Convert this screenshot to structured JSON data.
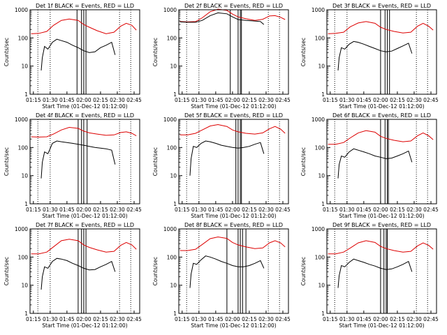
{
  "figure": {
    "xlabel": "Start Time (01-Dec-12 01:12:00)",
    "ylabel": "Counts/sec"
  },
  "colors": {
    "events": "#000000",
    "lld": "#dd0000",
    "axes": "#000000"
  },
  "chart_data": [
    {
      "type": "line",
      "title": "Det 1f BLACK = Events, RED = LLD",
      "xlabel": "Start Time (01-Dec-12 01:12:00)",
      "ylabel": "Counts/sec",
      "y_scale": "log",
      "ylim": [
        1,
        1000
      ],
      "x_ticks": [
        "01:15",
        "01:30",
        "01:45",
        "02:00",
        "02:15",
        "02:30",
        "02:45"
      ],
      "y_ticks": [
        "1",
        "10",
        "100",
        "1000"
      ],
      "dotted_vlines": [
        "01:19",
        "01:30",
        "02:32",
        "02:42"
      ],
      "solid_vlines": [
        "01:54",
        "01:58",
        "02:00",
        "02:02"
      ],
      "series": [
        {
          "name": "LLD",
          "x": [
            "01:13",
            "01:20",
            "01:27",
            "01:33",
            "01:40",
            "01:47",
            "01:55",
            "02:00",
            "02:05",
            "02:12",
            "02:20",
            "02:27",
            "02:33",
            "02:38",
            "02:43",
            "02:47"
          ],
          "values": [
            140,
            145,
            170,
            280,
            420,
            470,
            420,
            300,
            240,
            180,
            140,
            160,
            260,
            330,
            280,
            190
          ]
        },
        {
          "name": "Events",
          "x": [
            "01:22",
            "01:23",
            "01:25",
            "01:28",
            "01:32",
            "01:36",
            "01:40",
            "01:45",
            "01:50",
            "01:55",
            "02:00",
            "02:05",
            "02:10",
            "02:15",
            "02:20",
            "02:25",
            "02:28"
          ],
          "values": [
            7,
            20,
            50,
            40,
            70,
            90,
            80,
            70,
            55,
            45,
            35,
            30,
            32,
            45,
            55,
            70,
            25
          ]
        }
      ]
    },
    {
      "type": "line",
      "title": "Det 2f BLACK = Events, RED = LLD",
      "xlabel": "Start Time (01-Dec-12 01:12:00)",
      "ylabel": "Counts/sec",
      "y_scale": "log",
      "ylim": [
        1,
        1000
      ],
      "x_ticks": [
        "01:15",
        "01:30",
        "01:45",
        "02:00",
        "02:15",
        "02:30",
        "02:45"
      ],
      "y_ticks": [
        "1",
        "10",
        "100",
        "1000"
      ],
      "dotted_vlines": [
        "01:19",
        "01:30",
        "02:32",
        "02:42"
      ],
      "solid_vlines": [
        "01:58",
        "02:05",
        "02:07",
        "02:08"
      ],
      "series": [
        {
          "name": "LLD",
          "x": [
            "01:13",
            "01:20",
            "01:27",
            "01:33",
            "01:40",
            "01:47",
            "01:55",
            "02:00",
            "02:05",
            "02:12",
            "02:20",
            "02:27",
            "02:33",
            "02:38",
            "02:43",
            "02:47"
          ],
          "values": [
            380,
            370,
            380,
            520,
            850,
            1050,
            950,
            700,
            560,
            480,
            420,
            460,
            600,
            620,
            540,
            450
          ]
        },
        {
          "name": "Events",
          "x": [
            "01:13",
            "01:20",
            "01:27",
            "01:33",
            "01:40",
            "01:47",
            "01:55",
            "02:00",
            "02:05",
            "02:12",
            "02:20",
            "02:25",
            "02:28"
          ],
          "values": [
            370,
            360,
            360,
            420,
            620,
            780,
            720,
            560,
            450,
            420,
            400,
            380,
            300
          ]
        }
      ]
    },
    {
      "type": "line",
      "title": "Det 3f BLACK = Events, RED = LLD",
      "xlabel": "Start Time (01-Dec-12 01:12:00)",
      "ylabel": "Counts/sec",
      "y_scale": "log",
      "ylim": [
        1,
        1000
      ],
      "x_ticks": [
        "01:15",
        "01:30",
        "01:45",
        "02:00",
        "02:15",
        "02:30",
        "02:45"
      ],
      "y_ticks": [
        "1",
        "10",
        "100",
        "1000"
      ],
      "dotted_vlines": [
        "01:19",
        "01:30",
        "02:32",
        "02:42"
      ],
      "solid_vlines": [
        "02:00",
        "02:04",
        "02:06",
        "02:08"
      ],
      "series": [
        {
          "name": "LLD",
          "x": [
            "01:13",
            "01:20",
            "01:27",
            "01:33",
            "01:40",
            "01:47",
            "01:55",
            "02:00",
            "02:05",
            "02:12",
            "02:20",
            "02:27",
            "02:33",
            "02:38",
            "02:43",
            "02:47"
          ],
          "values": [
            140,
            145,
            160,
            250,
            340,
            380,
            330,
            240,
            200,
            170,
            150,
            160,
            260,
            330,
            260,
            190
          ]
        },
        {
          "name": "Events",
          "x": [
            "01:22",
            "01:23",
            "01:25",
            "01:28",
            "01:32",
            "01:36",
            "01:40",
            "01:45",
            "01:50",
            "01:55",
            "02:00",
            "02:05",
            "02:10",
            "02:15",
            "02:20",
            "02:25",
            "02:28"
          ],
          "values": [
            7,
            20,
            45,
            40,
            60,
            75,
            70,
            60,
            50,
            42,
            35,
            32,
            34,
            42,
            52,
            65,
            28
          ]
        }
      ]
    },
    {
      "type": "line",
      "title": "Det 4f BLACK = Events, RED = LLD",
      "xlabel": "Start Time (01-Dec-12 01:12:00)",
      "ylabel": "Counts/sec",
      "y_scale": "log",
      "ylim": [
        1,
        1000
      ],
      "x_ticks": [
        "01:15",
        "01:30",
        "01:45",
        "02:00",
        "02:15",
        "02:30",
        "02:45"
      ],
      "y_ticks": [
        "1",
        "10",
        "100",
        "1000"
      ],
      "dotted_vlines": [
        "01:19",
        "01:30",
        "02:32",
        "02:42"
      ],
      "solid_vlines": [
        "01:55",
        "01:58",
        "02:00",
        "02:03"
      ],
      "series": [
        {
          "name": "LLD",
          "x": [
            "01:13",
            "01:20",
            "01:27",
            "01:33",
            "01:40",
            "01:47",
            "01:55",
            "02:00",
            "02:05",
            "02:12",
            "02:20",
            "02:27",
            "02:33",
            "02:38",
            "02:43",
            "02:47"
          ],
          "values": [
            240,
            235,
            240,
            300,
            420,
            520,
            480,
            380,
            330,
            300,
            270,
            280,
            340,
            360,
            320,
            260
          ]
        },
        {
          "name": "Events",
          "x": [
            "01:22",
            "01:23",
            "01:25",
            "01:28",
            "01:32",
            "01:36",
            "01:40",
            "01:45",
            "01:50",
            "01:55",
            "02:00",
            "02:05",
            "02:10",
            "02:15",
            "02:20",
            "02:25",
            "02:28"
          ],
          "values": [
            8,
            30,
            70,
            60,
            140,
            170,
            160,
            150,
            140,
            130,
            120,
            110,
            100,
            95,
            90,
            80,
            25
          ]
        }
      ]
    },
    {
      "type": "line",
      "title": "Det 5f BLACK = Events, RED = LLD",
      "xlabel": "Start Time (01-Dec-12 01:12:00)",
      "ylabel": "Counts/sec",
      "y_scale": "log",
      "ylim": [
        1,
        1000
      ],
      "x_ticks": [
        "01:15",
        "01:30",
        "01:45",
        "02:00",
        "02:15",
        "02:30",
        "02:45"
      ],
      "y_ticks": [
        "1",
        "10",
        "100",
        "1000"
      ],
      "dotted_vlines": [
        "01:19",
        "01:30",
        "02:32",
        "02:42"
      ],
      "solid_vlines": [
        "02:03",
        "02:05",
        "02:07",
        "02:08"
      ],
      "series": [
        {
          "name": "LLD",
          "x": [
            "01:13",
            "01:20",
            "01:27",
            "01:33",
            "01:40",
            "01:47",
            "01:55",
            "02:00",
            "02:05",
            "02:12",
            "02:20",
            "02:27",
            "02:33",
            "02:38",
            "02:43",
            "02:47"
          ],
          "values": [
            280,
            280,
            320,
            420,
            580,
            650,
            560,
            420,
            360,
            320,
            300,
            330,
            460,
            560,
            450,
            320
          ]
        },
        {
          "name": "Events",
          "x": [
            "01:22",
            "01:23",
            "01:25",
            "01:28",
            "01:32",
            "01:36",
            "01:40",
            "01:45",
            "01:50",
            "01:55",
            "02:00",
            "02:05",
            "02:10",
            "02:15",
            "02:20",
            "02:25",
            "02:28"
          ],
          "values": [
            10,
            40,
            110,
            100,
            140,
            170,
            160,
            140,
            120,
            110,
            100,
            95,
            100,
            110,
            130,
            150,
            60
          ]
        }
      ]
    },
    {
      "type": "line",
      "title": "Det 6f BLACK = Events, RED = LLD",
      "xlabel": "Start Time (01-Dec-12 01:12:00)",
      "ylabel": "Counts/sec",
      "y_scale": "log",
      "ylim": [
        1,
        1000
      ],
      "x_ticks": [
        "01:15",
        "01:30",
        "01:45",
        "02:00",
        "02:15",
        "02:30",
        "02:45"
      ],
      "y_ticks": [
        "1",
        "10",
        "100",
        "1000"
      ],
      "dotted_vlines": [
        "01:19",
        "01:30",
        "02:32",
        "02:42"
      ],
      "solid_vlines": [
        "02:00",
        "02:04",
        "02:06",
        "02:07"
      ],
      "series": [
        {
          "name": "LLD",
          "x": [
            "01:13",
            "01:20",
            "01:27",
            "01:33",
            "01:40",
            "01:47",
            "01:55",
            "02:00",
            "02:05",
            "02:12",
            "02:20",
            "02:27",
            "02:33",
            "02:38",
            "02:43",
            "02:47"
          ],
          "values": [
            130,
            130,
            150,
            220,
            330,
            400,
            350,
            250,
            210,
            180,
            160,
            170,
            260,
            330,
            260,
            190
          ]
        },
        {
          "name": "Events",
          "x": [
            "01:22",
            "01:23",
            "01:25",
            "01:28",
            "01:32",
            "01:36",
            "01:40",
            "01:45",
            "01:50",
            "01:55",
            "02:00",
            "02:05",
            "02:10",
            "02:15",
            "02:20",
            "02:25",
            "02:28"
          ],
          "values": [
            8,
            25,
            50,
            45,
            70,
            90,
            80,
            70,
            60,
            50,
            45,
            40,
            42,
            50,
            60,
            75,
            30
          ]
        }
      ]
    },
    {
      "type": "line",
      "title": "Det 7f BLACK = Events, RED = LLD",
      "xlabel": "Start Time (01-Dec-12 01:12:00)",
      "ylabel": "Counts/sec",
      "y_scale": "log",
      "ylim": [
        1,
        1000
      ],
      "x_ticks": [
        "01:15",
        "01:30",
        "01:45",
        "02:00",
        "02:15",
        "02:30",
        "02:45"
      ],
      "y_ticks": [
        "1",
        "10",
        "100",
        "1000"
      ],
      "dotted_vlines": [
        "01:19",
        "01:30",
        "02:32",
        "02:42"
      ],
      "solid_vlines": [
        "01:55",
        "01:58",
        "02:00",
        "02:02"
      ],
      "series": [
        {
          "name": "LLD",
          "x": [
            "01:13",
            "01:20",
            "01:27",
            "01:33",
            "01:40",
            "01:47",
            "01:55",
            "02:00",
            "02:05",
            "02:12",
            "02:20",
            "02:27",
            "02:33",
            "02:38",
            "02:43",
            "02:47"
          ],
          "values": [
            130,
            130,
            150,
            230,
            380,
            430,
            380,
            270,
            220,
            180,
            150,
            160,
            260,
            330,
            270,
            190
          ]
        },
        {
          "name": "Events",
          "x": [
            "01:22",
            "01:23",
            "01:25",
            "01:28",
            "01:32",
            "01:36",
            "01:40",
            "01:45",
            "01:50",
            "01:55",
            "02:00",
            "02:05",
            "02:10",
            "02:15",
            "02:20",
            "02:25",
            "02:28"
          ],
          "values": [
            7,
            20,
            45,
            40,
            70,
            90,
            85,
            75,
            60,
            50,
            40,
            35,
            36,
            45,
            55,
            70,
            30
          ]
        }
      ]
    },
    {
      "type": "line",
      "title": "Det 8f BLACK = Events, RED = LLD",
      "xlabel": "Start Time (01-Dec-12 01:12:00)",
      "ylabel": "Counts/sec",
      "y_scale": "log",
      "ylim": [
        1,
        1000
      ],
      "x_ticks": [
        "01:15",
        "01:30",
        "01:45",
        "02:00",
        "02:15",
        "02:30",
        "02:45"
      ],
      "y_ticks": [
        "1",
        "10",
        "100",
        "1000"
      ],
      "dotted_vlines": [
        "01:19",
        "01:30",
        "02:32",
        "02:42"
      ],
      "solid_vlines": [
        "01:55",
        "02:05",
        "02:07",
        "02:09",
        "02:12"
      ],
      "series": [
        {
          "name": "LLD",
          "x": [
            "01:13",
            "01:20",
            "01:27",
            "01:33",
            "01:40",
            "01:47",
            "01:55",
            "02:00",
            "02:05",
            "02:12",
            "02:20",
            "02:27",
            "02:33",
            "02:38",
            "02:43",
            "02:47"
          ],
          "values": [
            170,
            170,
            190,
            280,
            450,
            520,
            460,
            330,
            270,
            230,
            200,
            210,
            320,
            380,
            320,
            230
          ]
        },
        {
          "name": "Events",
          "x": [
            "01:22",
            "01:23",
            "01:25",
            "01:28",
            "01:32",
            "01:36",
            "01:40",
            "01:45",
            "01:50",
            "01:55",
            "02:00",
            "02:05",
            "02:10",
            "02:15",
            "02:20",
            "02:25",
            "02:28"
          ],
          "values": [
            8,
            25,
            60,
            55,
            80,
            110,
            100,
            85,
            70,
            60,
            50,
            45,
            45,
            50,
            60,
            75,
            40
          ]
        }
      ]
    },
    {
      "type": "line",
      "title": "Det 9f BLACK = Events, RED = LLD",
      "xlabel": "Start Time (01-Dec-12 01:12:00)",
      "ylabel": "Counts/sec",
      "y_scale": "log",
      "ylim": [
        1,
        1000
      ],
      "x_ticks": [
        "01:15",
        "01:30",
        "01:45",
        "02:00",
        "02:15",
        "02:30",
        "02:45"
      ],
      "y_ticks": [
        "1",
        "10",
        "100",
        "1000"
      ],
      "dotted_vlines": [
        "01:19",
        "01:30",
        "02:32",
        "02:42"
      ],
      "solid_vlines": [
        "02:00",
        "02:03",
        "02:05",
        "02:06"
      ],
      "series": [
        {
          "name": "LLD",
          "x": [
            "01:13",
            "01:20",
            "01:27",
            "01:33",
            "01:40",
            "01:47",
            "01:55",
            "02:00",
            "02:05",
            "02:12",
            "02:20",
            "02:27",
            "02:33",
            "02:38",
            "02:43",
            "02:47"
          ],
          "values": [
            130,
            130,
            150,
            210,
            320,
            380,
            330,
            240,
            200,
            170,
            150,
            160,
            250,
            320,
            260,
            190
          ]
        },
        {
          "name": "Events",
          "x": [
            "01:22",
            "01:23",
            "01:25",
            "01:28",
            "01:32",
            "01:36",
            "01:40",
            "01:45",
            "01:50",
            "01:55",
            "02:00",
            "02:05",
            "02:10",
            "02:15",
            "02:20",
            "02:25",
            "02:28"
          ],
          "values": [
            8,
            22,
            50,
            45,
            65,
            85,
            75,
            65,
            55,
            48,
            40,
            36,
            38,
            45,
            55,
            70,
            30
          ]
        }
      ]
    }
  ]
}
